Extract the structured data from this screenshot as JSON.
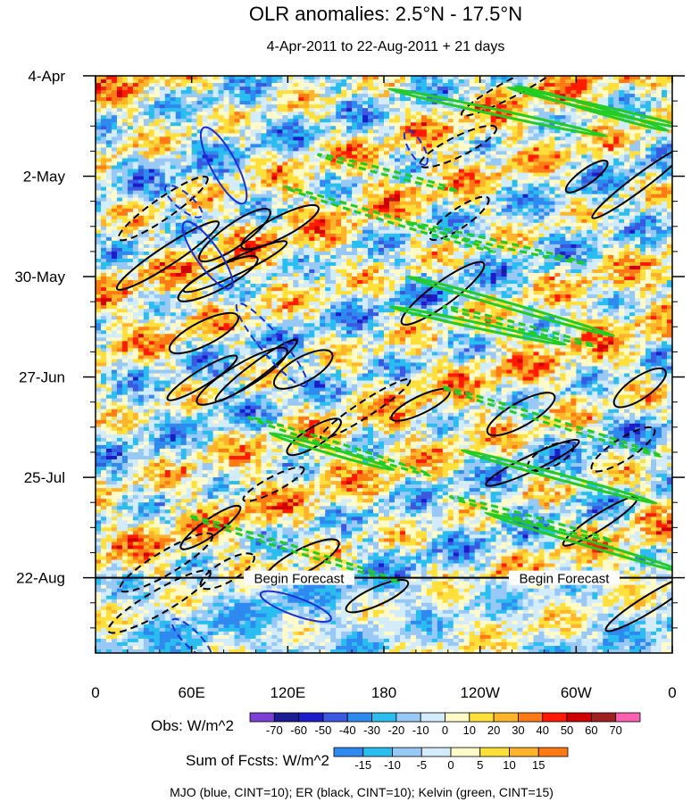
{
  "chart_data": {
    "type": "heatmap",
    "title": "OLR anomalies: 2.5°N - 17.5°N",
    "subtitle": "4-Apr-2011 to 22-Aug-2011 + 21 days",
    "x_tick_labels": [
      "0",
      "60E",
      "120E",
      "180",
      "120W",
      "60W",
      "0"
    ],
    "x_ticks_deg": [
      0,
      60,
      120,
      180,
      240,
      300,
      360
    ],
    "y_tick_labels": [
      "4-Apr",
      "2-May",
      "30-May",
      "27-Jun",
      "25-Jul",
      "22-Aug"
    ],
    "y_ticks_day": [
      0,
      28,
      56,
      84,
      112,
      140
    ],
    "xlim_deg": [
      0,
      360
    ],
    "ylim_day": [
      0,
      161
    ],
    "forecast_start_day": 140,
    "forecast_label": "Begin Forecast",
    "obs_colorbar": {
      "label": "Obs: W/m^2",
      "levels": [
        -70,
        -60,
        -50,
        -40,
        -30,
        -20,
        -10,
        0,
        10,
        20,
        30,
        40,
        50,
        60,
        70
      ],
      "colors": [
        "#7e3fd6",
        "#1c1c96",
        "#1c1cc8",
        "#3a58e0",
        "#2f8af0",
        "#29bdf0",
        "#98c8f5",
        "#d3ecfb",
        "#fffac8",
        "#ffdf3a",
        "#ffb429",
        "#ff7a14",
        "#ff1a00",
        "#d10000",
        "#a01f1f",
        "#ff5fb0"
      ]
    },
    "fcst_colorbar": {
      "label": "Sum of Fcsts: W/m^2",
      "levels": [
        -15,
        -10,
        -5,
        0,
        5,
        10,
        15
      ],
      "colors": [
        "#2f8af0",
        "#29bdf0",
        "#98c8f5",
        "#d3ecfb",
        "#fffac8",
        "#ffdf3a",
        "#ffb429",
        "#ff7a14"
      ]
    },
    "footnote": "MJO (blue, CINT=10); ER (black, CINT=10); Kelvin (green, CINT=15)",
    "contour_series": [
      {
        "name": "MJO",
        "color": "#1a2fd8",
        "cint": 10
      },
      {
        "name": "ER",
        "color": "#000000",
        "cint": 10
      },
      {
        "name": "Kelvin",
        "color": "#22cc22",
        "cint": 15
      }
    ]
  }
}
